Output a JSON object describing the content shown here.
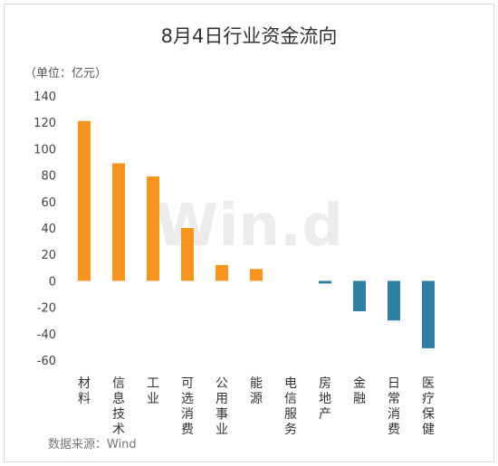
{
  "chart_data": {
    "type": "bar",
    "title": "8月4日行业资金流向",
    "unit_label": "（单位：亿元）",
    "categories": [
      "材料",
      "信息技术",
      "工业",
      "可选消费",
      "公用事业",
      "能源",
      "电信服务",
      "房地产",
      "金融",
      "日常消费",
      "医疗保健"
    ],
    "values": [
      121,
      89,
      79,
      40,
      12,
      9,
      0,
      -2,
      -23,
      -30,
      -51
    ],
    "ylim": [
      -60,
      140
    ],
    "yticks": [
      140,
      120,
      100,
      80,
      60,
      40,
      20,
      0,
      -20,
      -40,
      -60
    ],
    "grid": false,
    "colors": {
      "positive": "#F7941D",
      "negative": "#2E7EA6"
    }
  },
  "watermark": "Win.d",
  "source": "数据来源：Wind"
}
